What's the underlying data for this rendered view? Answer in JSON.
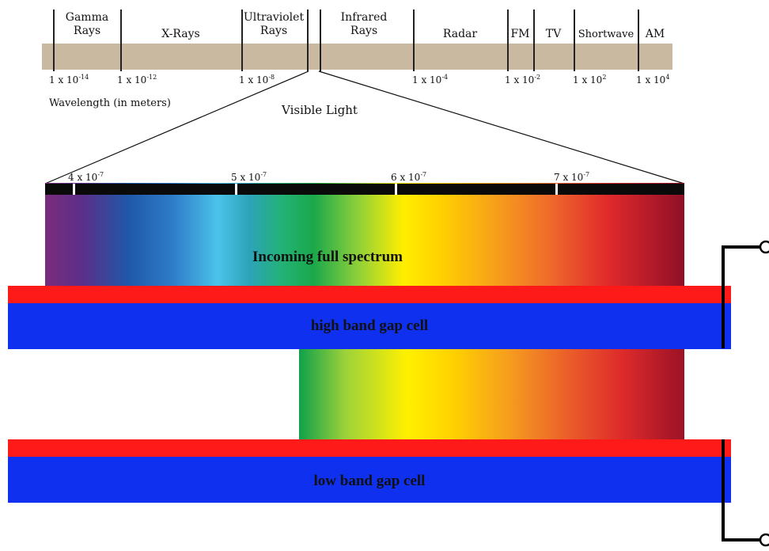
{
  "em_spectrum": {
    "bands": [
      {
        "label": "Gamma\nRays"
      },
      {
        "label": "X-Rays"
      },
      {
        "label": "Ultraviolet\nRays"
      },
      {
        "label": "Infrared\nRays"
      },
      {
        "label": "Radar"
      },
      {
        "label": "FM"
      },
      {
        "label": "TV"
      },
      {
        "label": "Shortwave"
      },
      {
        "label": "AM"
      }
    ],
    "wavelength_ticks": [
      {
        "base": "1 x 10",
        "exp": "-14"
      },
      {
        "base": "1 x 10",
        "exp": "-12"
      },
      {
        "base": "1 x 10",
        "exp": "-8"
      },
      {
        "base": "1 x 10",
        "exp": "-4"
      },
      {
        "base": "1 x 10",
        "exp": "-2"
      },
      {
        "base": "1 x 10",
        "exp": "2"
      },
      {
        "base": "1 x 10",
        "exp": "4"
      }
    ],
    "axis_caption": "Wavelength (in meters)",
    "visible_caption": "Visible Light"
  },
  "visible_scale": {
    "ticks": [
      {
        "base": "4 x 10",
        "exp": "-7"
      },
      {
        "base": "5 x 10",
        "exp": "-7"
      },
      {
        "base": "6 x 10",
        "exp": "-7"
      },
      {
        "base": "7 x 10",
        "exp": "-7"
      }
    ]
  },
  "cells": {
    "incoming_label": "Incoming full spectrum",
    "high_label": "high band gap cell",
    "low_label": "low band gap cell"
  },
  "colors": {
    "em_band": "#c9b9a0",
    "contact_red": "#ff1a1a",
    "cell_blue": "#1030f0"
  }
}
